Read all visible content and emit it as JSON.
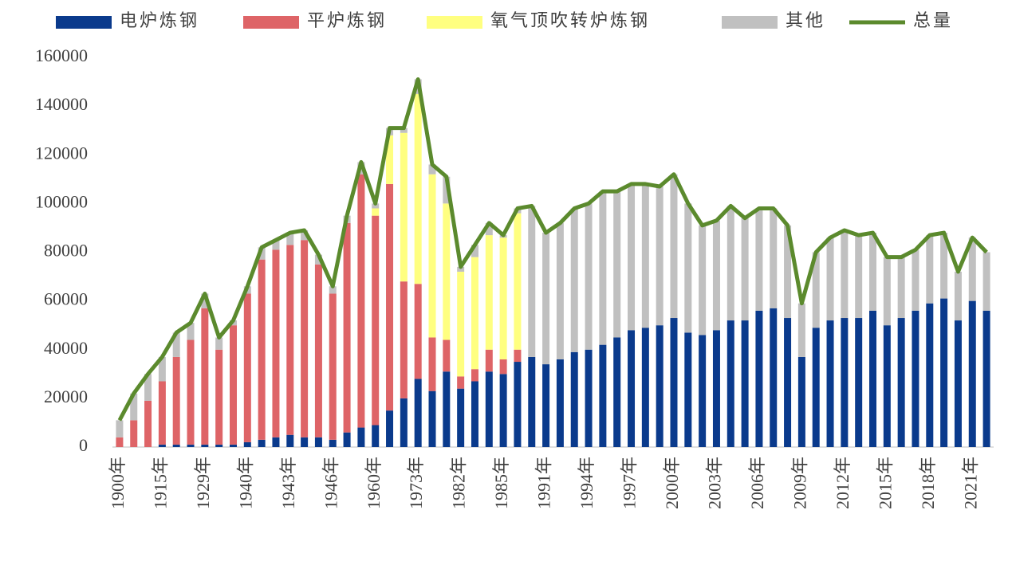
{
  "chart_data": {
    "type": "bar",
    "stacked": true,
    "categories": [
      "1900年",
      null,
      null,
      "1915年",
      null,
      null,
      "1929年",
      null,
      null,
      "1940年",
      null,
      null,
      "1943年",
      null,
      null,
      "1946年",
      null,
      null,
      "1960年",
      null,
      null,
      "1973年",
      null,
      null,
      "1982年",
      null,
      null,
      "1985年",
      null,
      null,
      "1991年",
      null,
      null,
      "1994年",
      null,
      null,
      "1997年",
      null,
      null,
      "2000年",
      null,
      null,
      "2003年",
      null,
      null,
      "2006年",
      null,
      null,
      "2009年",
      null,
      null,
      "2012年",
      null,
      null,
      "2015年",
      null,
      null,
      "2018年",
      null,
      null,
      "2021年",
      null
    ],
    "series": [
      {
        "name": "电炉炼钢",
        "color": "#0a3a8c",
        "values": [
          0,
          0,
          0,
          1000,
          1000,
          1000,
          1000,
          1000,
          1000,
          2000,
          3000,
          4000,
          5000,
          4000,
          4000,
          3000,
          6000,
          8000,
          9000,
          15000,
          20000,
          28000,
          23000,
          31000,
          24000,
          27000,
          31000,
          30000,
          35000,
          37000,
          34000,
          36000,
          39000,
          40000,
          42000,
          45000,
          48000,
          49000,
          50000,
          53000,
          47000,
          46000,
          48000,
          52000,
          52000,
          56000,
          57000,
          53000,
          37000,
          49000,
          52000,
          53000,
          53000,
          56000,
          50000,
          53000,
          56000,
          59000,
          61000,
          52000,
          60000,
          56000
        ]
      },
      {
        "name": "平炉炼钢",
        "color": "#de6467",
        "values": [
          4000,
          11000,
          19000,
          26000,
          36000,
          43000,
          56000,
          39000,
          49000,
          61000,
          74000,
          77000,
          78000,
          81000,
          71000,
          60000,
          86000,
          104000,
          86000,
          93000,
          48000,
          39000,
          22000,
          13000,
          5000,
          5000,
          9000,
          6000,
          5000,
          0,
          0,
          0,
          0,
          0,
          0,
          0,
          0,
          0,
          0,
          0,
          0,
          0,
          0,
          0,
          0,
          0,
          0,
          0,
          0,
          0,
          0,
          0,
          0,
          0,
          0,
          0,
          0,
          0,
          0,
          0,
          0,
          0
        ]
      },
      {
        "name": "氧气顶吹转炉炼钢",
        "color": "#ffff80",
        "values": [
          0,
          0,
          0,
          0,
          0,
          0,
          0,
          0,
          0,
          0,
          0,
          0,
          0,
          0,
          0,
          0,
          0,
          0,
          3000,
          20000,
          61000,
          78000,
          67000,
          56000,
          43000,
          46000,
          47000,
          50000,
          56000,
          0,
          0,
          0,
          0,
          0,
          0,
          0,
          0,
          0,
          0,
          0,
          0,
          0,
          0,
          0,
          0,
          0,
          0,
          0,
          0,
          0,
          0,
          0,
          0,
          0,
          0,
          0,
          0,
          0,
          0,
          0,
          0,
          0
        ]
      },
      {
        "name": "其他",
        "color": "#c0c0c0",
        "values": [
          7000,
          11000,
          11000,
          10000,
          10000,
          7000,
          6000,
          5000,
          2000,
          3000,
          5000,
          4000,
          5000,
          4000,
          4000,
          3000,
          3000,
          5000,
          2000,
          3000,
          2000,
          6000,
          4000,
          11000,
          2000,
          5000,
          5000,
          1000,
          2000,
          62000,
          54000,
          56000,
          59000,
          60000,
          63000,
          60000,
          60000,
          59000,
          57000,
          59000,
          53000,
          45000,
          45000,
          47000,
          42000,
          42000,
          41000,
          38000,
          22000,
          31000,
          34000,
          36000,
          34000,
          32000,
          28000,
          25000,
          25000,
          28000,
          27000,
          20000,
          26000,
          24000
        ]
      },
      {
        "name": "总量",
        "color": "#5b8a2d",
        "kind": "line",
        "values": [
          11000,
          22000,
          30000,
          37000,
          47000,
          51000,
          63000,
          45000,
          52000,
          66000,
          82000,
          85000,
          88000,
          89000,
          79000,
          66000,
          95000,
          117000,
          100000,
          131000,
          131000,
          151000,
          116000,
          111000,
          74000,
          83000,
          92000,
          87000,
          98000,
          99000,
          88000,
          92000,
          98000,
          100000,
          105000,
          105000,
          108000,
          108000,
          107000,
          112000,
          100000,
          91000,
          93000,
          99000,
          94000,
          98000,
          98000,
          91000,
          59000,
          80000,
          86000,
          89000,
          87000,
          88000,
          78000,
          78000,
          81000,
          87000,
          88000,
          72000,
          86000,
          80000
        ]
      }
    ],
    "ylim": [
      0,
      160000
    ],
    "yticks": [
      0,
      20000,
      40000,
      60000,
      80000,
      100000,
      120000,
      140000,
      160000
    ],
    "grid": false,
    "legend": "top"
  }
}
